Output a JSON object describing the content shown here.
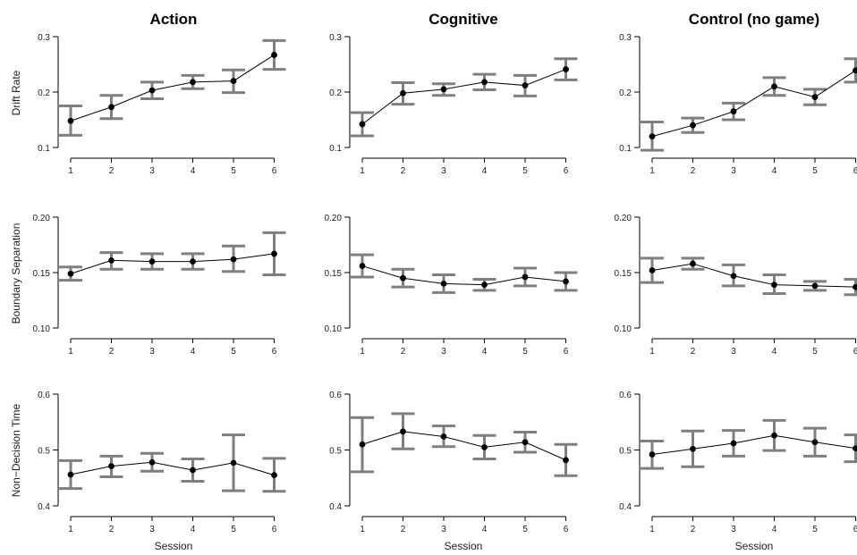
{
  "chart_data": {
    "type": "line",
    "x": [
      1,
      2,
      3,
      4,
      5,
      6
    ],
    "xticks": [
      "1",
      "2",
      "3",
      "4",
      "5",
      "6"
    ],
    "xlabel": "Session",
    "columns": [
      "Action",
      "Cognitive",
      "Control (no game)"
    ],
    "rows": [
      {
        "ylabel": "Drift Rate",
        "ylim": [
          0.1,
          0.3
        ],
        "yticks": [
          "0.1",
          "0.2",
          "0.3"
        ],
        "yvals": [
          0.1,
          0.2,
          0.3
        ]
      },
      {
        "ylabel": "Boundary Separation",
        "ylim": [
          0.1,
          0.2
        ],
        "yticks": [
          "0.10",
          "0.15",
          "0.20"
        ],
        "yvals": [
          0.1,
          0.15,
          0.2
        ]
      },
      {
        "ylabel": "Non−Decision Time",
        "ylim": [
          0.4,
          0.6
        ],
        "yticks": [
          "0.4",
          "0.5",
          "0.6"
        ],
        "yvals": [
          0.4,
          0.5,
          0.6
        ]
      }
    ],
    "panels": [
      {
        "row": 0,
        "col": 0,
        "values": [
          0.148,
          0.173,
          0.203,
          0.218,
          0.22,
          0.267
        ],
        "err_low": [
          0.122,
          0.152,
          0.188,
          0.206,
          0.199,
          0.241
        ],
        "err_high": [
          0.175,
          0.194,
          0.218,
          0.23,
          0.24,
          0.293
        ]
      },
      {
        "row": 0,
        "col": 1,
        "values": [
          0.142,
          0.198,
          0.205,
          0.218,
          0.212,
          0.241
        ],
        "err_low": [
          0.121,
          0.178,
          0.194,
          0.204,
          0.193,
          0.222
        ],
        "err_high": [
          0.163,
          0.217,
          0.215,
          0.232,
          0.23,
          0.26
        ]
      },
      {
        "row": 0,
        "col": 2,
        "values": [
          0.12,
          0.14,
          0.165,
          0.21,
          0.191,
          0.239
        ],
        "err_low": [
          0.095,
          0.127,
          0.15,
          0.194,
          0.177,
          0.218
        ],
        "err_high": [
          0.146,
          0.153,
          0.18,
          0.226,
          0.205,
          0.26
        ]
      },
      {
        "row": 1,
        "col": 0,
        "values": [
          0.149,
          0.161,
          0.16,
          0.16,
          0.162,
          0.167
        ],
        "err_low": [
          0.143,
          0.153,
          0.153,
          0.153,
          0.151,
          0.148
        ],
        "err_high": [
          0.155,
          0.168,
          0.167,
          0.167,
          0.174,
          0.186
        ]
      },
      {
        "row": 1,
        "col": 1,
        "values": [
          0.156,
          0.145,
          0.14,
          0.139,
          0.146,
          0.142
        ],
        "err_low": [
          0.146,
          0.137,
          0.132,
          0.134,
          0.138,
          0.134
        ],
        "err_high": [
          0.166,
          0.153,
          0.148,
          0.144,
          0.154,
          0.15
        ]
      },
      {
        "row": 1,
        "col": 2,
        "values": [
          0.152,
          0.158,
          0.147,
          0.139,
          0.138,
          0.137
        ],
        "err_low": [
          0.141,
          0.153,
          0.138,
          0.131,
          0.134,
          0.13
        ],
        "err_high": [
          0.163,
          0.163,
          0.157,
          0.148,
          0.142,
          0.144
        ]
      },
      {
        "row": 2,
        "col": 0,
        "values": [
          0.456,
          0.471,
          0.478,
          0.464,
          0.477,
          0.455
        ],
        "err_low": [
          0.431,
          0.452,
          0.462,
          0.444,
          0.427,
          0.426
        ],
        "err_high": [
          0.481,
          0.489,
          0.494,
          0.484,
          0.527,
          0.485
        ]
      },
      {
        "row": 2,
        "col": 1,
        "values": [
          0.51,
          0.533,
          0.524,
          0.505,
          0.514,
          0.482
        ],
        "err_low": [
          0.461,
          0.502,
          0.506,
          0.484,
          0.496,
          0.454
        ],
        "err_high": [
          0.558,
          0.565,
          0.543,
          0.526,
          0.532,
          0.51
        ]
      },
      {
        "row": 2,
        "col": 2,
        "values": [
          0.492,
          0.502,
          0.512,
          0.526,
          0.514,
          0.503
        ],
        "err_low": [
          0.467,
          0.47,
          0.489,
          0.499,
          0.489,
          0.479
        ],
        "err_high": [
          0.516,
          0.534,
          0.535,
          0.553,
          0.539,
          0.527
        ]
      }
    ]
  }
}
